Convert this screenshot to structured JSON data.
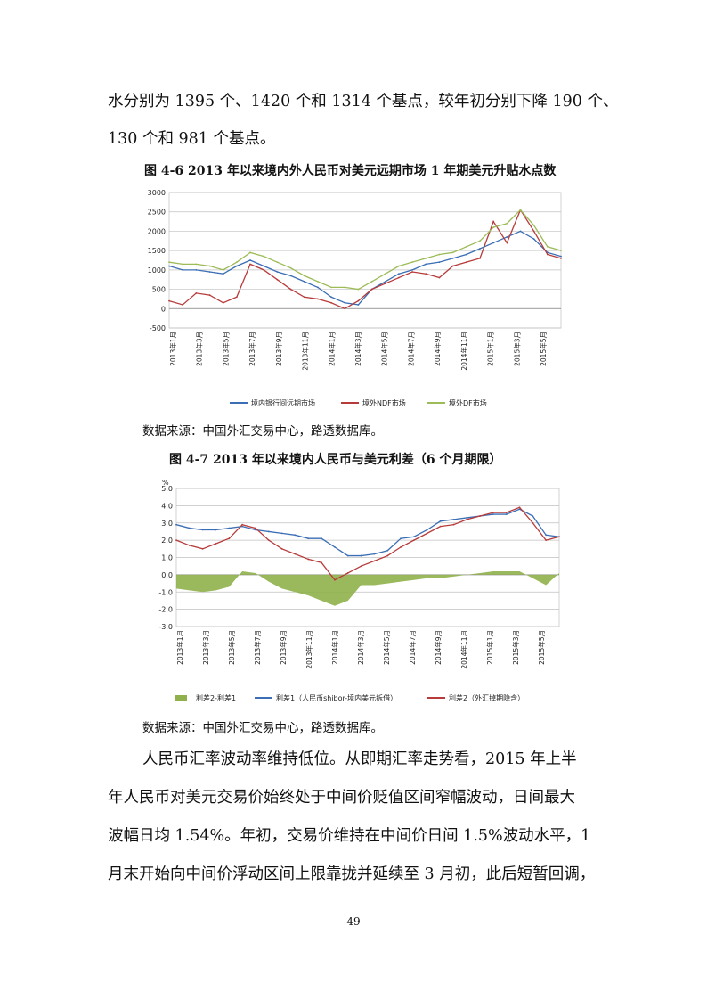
{
  "body_top": {
    "line1": "水分别为 1395 个、1420 个和 1314 个基点，较年初分别下降 190 个、",
    "line2": "130 个和 981 个基点。"
  },
  "figure1": {
    "caption": "图 4-6    2013 年以来境内外人民币对美元远期市场 1 年期美元升贴水点数",
    "source": "数据来源：中国外汇交易中心，路透数据库。"
  },
  "figure2": {
    "caption": "图 4-7    2013 年以来境内人民币与美元利差（6 个月期限）",
    "source": "数据来源：中国外汇交易中心，路透数据库。"
  },
  "body_bottom": {
    "line1": "人民币汇率波动率维持低位。从即期汇率走势看，2015 年上半",
    "line2": "年人民币对美元交易价始终处于中间价贬值区间窄幅波动，日间最大",
    "line3": "波幅日均 1.54%。年初，交易价维持在中间价日间 1.5%波动水平，1",
    "line4": "月末开始向中间价浮动区间上限靠拢并延续至 3 月初，此后短暂回调，"
  },
  "page_number": "—49—",
  "chart_data": [
    {
      "type": "line",
      "title": "",
      "ylim": [
        -500,
        3000
      ],
      "yticks": [
        "-500",
        "0",
        "500",
        "1000",
        "1500",
        "2000",
        "2500",
        "3000"
      ],
      "x_tick_labels": [
        "2013年1月",
        "2013年3月",
        "2013年5月",
        "2013年7月",
        "2013年9月",
        "2013年11月",
        "2014年1月",
        "2014年3月",
        "2014年5月",
        "2014年7月",
        "2014年9月",
        "2014年11月",
        "2015年1月",
        "2015年3月",
        "2015年5月"
      ],
      "x_keys": [
        "2013-01",
        "2013-02",
        "2013-03",
        "2013-04",
        "2013-05",
        "2013-06",
        "2013-07",
        "2013-08",
        "2013-09",
        "2013-10",
        "2013-11",
        "2013-12",
        "2014-01",
        "2014-02",
        "2014-03",
        "2014-04",
        "2014-05",
        "2014-06",
        "2014-07",
        "2014-08",
        "2014-09",
        "2014-10",
        "2014-11",
        "2014-12",
        "2015-01",
        "2015-02",
        "2015-03",
        "2015-04",
        "2015-05",
        "2015-06"
      ],
      "grid": true,
      "legend_position": "bottom",
      "series": [
        {
          "name": "境内银行间远期市场",
          "color": "#3b6eb5",
          "values": [
            1100,
            1000,
            1000,
            950,
            900,
            1100,
            1250,
            1100,
            950,
            850,
            700,
            550,
            300,
            150,
            100,
            500,
            700,
            900,
            1000,
            1150,
            1200,
            1300,
            1400,
            1550,
            1700,
            1850,
            2000,
            1800,
            1450,
            1350
          ]
        },
        {
          "name": "境外NDF市场",
          "color": "#b83b3b",
          "values": [
            200,
            100,
            400,
            350,
            150,
            300,
            1150,
            1000,
            750,
            500,
            300,
            250,
            150,
            0,
            200,
            500,
            650,
            800,
            950,
            900,
            800,
            1100,
            1200,
            1300,
            2250,
            1700,
            2550,
            2000,
            1400,
            1300
          ]
        },
        {
          "name": "境外DF市场",
          "color": "#9dbb57",
          "values": [
            1200,
            1150,
            1150,
            1100,
            1000,
            1200,
            1450,
            1350,
            1200,
            1050,
            850,
            700,
            550,
            550,
            500,
            700,
            900,
            1100,
            1200,
            1300,
            1400,
            1450,
            1600,
            1750,
            2100,
            2200,
            2550,
            2150,
            1600,
            1500
          ]
        }
      ]
    },
    {
      "type": "line",
      "title": "",
      "ylabel": "%",
      "ylim": [
        -3.0,
        5.0
      ],
      "yticks": [
        "-3.0",
        "-2.0",
        "-1.0",
        "0.0",
        "1.0",
        "2.0",
        "3.0",
        "4.0",
        "5.0"
      ],
      "x_tick_labels": [
        "2013年1月",
        "2013年3月",
        "2013年5月",
        "2013年7月",
        "2013年9月",
        "2013年11月",
        "2014年1月",
        "2014年3月",
        "2014年5月",
        "2014年7月",
        "2014年9月",
        "2014年11月",
        "2015年1月",
        "2015年3月",
        "2015年5月"
      ],
      "x_keys": [
        "2013-01",
        "2013-02",
        "2013-03",
        "2013-04",
        "2013-05",
        "2013-06",
        "2013-07",
        "2013-08",
        "2013-09",
        "2013-10",
        "2013-11",
        "2013-12",
        "2014-01",
        "2014-02",
        "2014-03",
        "2014-04",
        "2014-05",
        "2014-06",
        "2014-07",
        "2014-08",
        "2014-09",
        "2014-10",
        "2014-11",
        "2014-12",
        "2015-01",
        "2015-02",
        "2015-03",
        "2015-04",
        "2015-05",
        "2015-06"
      ],
      "grid": true,
      "legend_position": "bottom",
      "series": [
        {
          "name": "利差2-利差1",
          "color": "#8fb04a",
          "style": "area",
          "values": [
            -0.8,
            -0.9,
            -1.0,
            -0.9,
            -0.7,
            0.2,
            0.1,
            -0.4,
            -0.8,
            -1.0,
            -1.2,
            -1.5,
            -1.8,
            -1.5,
            -0.6,
            -0.6,
            -0.5,
            -0.4,
            -0.3,
            -0.2,
            -0.2,
            -0.1,
            0.0,
            0.1,
            0.2,
            0.2,
            0.2,
            -0.2,
            -0.6,
            0.1
          ]
        },
        {
          "name": "利差1（人民币shibor-境内美元拆借）",
          "color": "#3b6eb5",
          "style": "line",
          "values": [
            2.9,
            2.7,
            2.6,
            2.6,
            2.7,
            2.8,
            2.6,
            2.5,
            2.4,
            2.3,
            2.1,
            2.1,
            1.6,
            1.1,
            1.1,
            1.2,
            1.4,
            2.1,
            2.2,
            2.6,
            3.1,
            3.2,
            3.3,
            3.4,
            3.5,
            3.5,
            3.8,
            3.4,
            2.3,
            2.2
          ]
        },
        {
          "name": "利差2（外汇掉期隐含）",
          "color": "#b83b3b",
          "style": "line",
          "values": [
            2.0,
            1.7,
            1.5,
            1.8,
            2.1,
            2.9,
            2.7,
            2.0,
            1.5,
            1.2,
            0.9,
            0.7,
            -0.3,
            0.1,
            0.5,
            0.8,
            1.1,
            1.6,
            2.0,
            2.4,
            2.8,
            2.9,
            3.2,
            3.4,
            3.6,
            3.6,
            3.9,
            3.0,
            2.0,
            2.2
          ]
        }
      ]
    }
  ]
}
